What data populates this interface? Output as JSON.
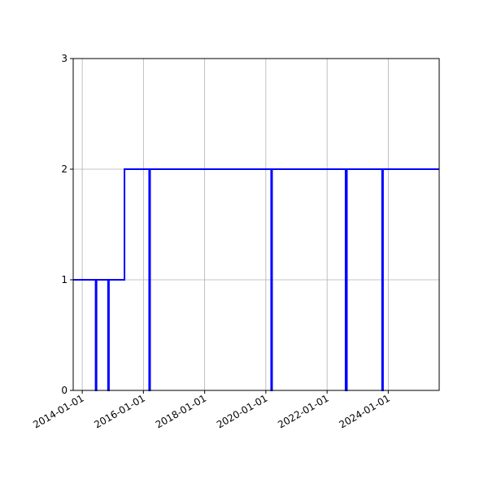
{
  "chart_data": {
    "type": "line",
    "step": true,
    "title": "",
    "xlabel": "",
    "ylabel": "",
    "x_axis": "date",
    "xlim": [
      "2013-09-15",
      "2025-08-31"
    ],
    "ylim": [
      0,
      3
    ],
    "grid": true,
    "legend": "none",
    "x_ticks": [
      "2014-01-01",
      "2016-01-01",
      "2018-01-01",
      "2020-01-01",
      "2022-01-01",
      "2024-01-01"
    ],
    "y_ticks": [
      "0",
      "1",
      "2",
      "3"
    ],
    "series": [
      {
        "color": "#0000ff",
        "points": [
          {
            "x": "2013-09-15",
            "y": 1
          },
          {
            "x": "2014-06-10",
            "y": 1
          },
          {
            "x": "2014-06-10",
            "y": 0
          },
          {
            "x": "2014-06-20",
            "y": 0
          },
          {
            "x": "2014-06-20",
            "y": 1
          },
          {
            "x": "2014-11-05",
            "y": 1
          },
          {
            "x": "2014-11-05",
            "y": 0
          },
          {
            "x": "2014-11-15",
            "y": 0
          },
          {
            "x": "2014-11-15",
            "y": 1
          },
          {
            "x": "2015-05-20",
            "y": 1
          },
          {
            "x": "2015-05-20",
            "y": 2
          },
          {
            "x": "2016-03-10",
            "y": 2
          },
          {
            "x": "2016-03-10",
            "y": 0
          },
          {
            "x": "2016-03-20",
            "y": 0
          },
          {
            "x": "2016-03-20",
            "y": 2
          },
          {
            "x": "2020-03-05",
            "y": 2
          },
          {
            "x": "2020-03-05",
            "y": 0
          },
          {
            "x": "2020-03-15",
            "y": 0
          },
          {
            "x": "2020-03-15",
            "y": 2
          },
          {
            "x": "2022-08-10",
            "y": 2
          },
          {
            "x": "2022-08-10",
            "y": 0
          },
          {
            "x": "2022-08-25",
            "y": 0
          },
          {
            "x": "2022-08-25",
            "y": 2
          },
          {
            "x": "2023-10-20",
            "y": 2
          },
          {
            "x": "2023-10-20",
            "y": 0
          },
          {
            "x": "2023-10-30",
            "y": 0
          },
          {
            "x": "2023-10-30",
            "y": 2
          },
          {
            "x": "2025-08-31",
            "y": 2
          }
        ]
      }
    ]
  }
}
